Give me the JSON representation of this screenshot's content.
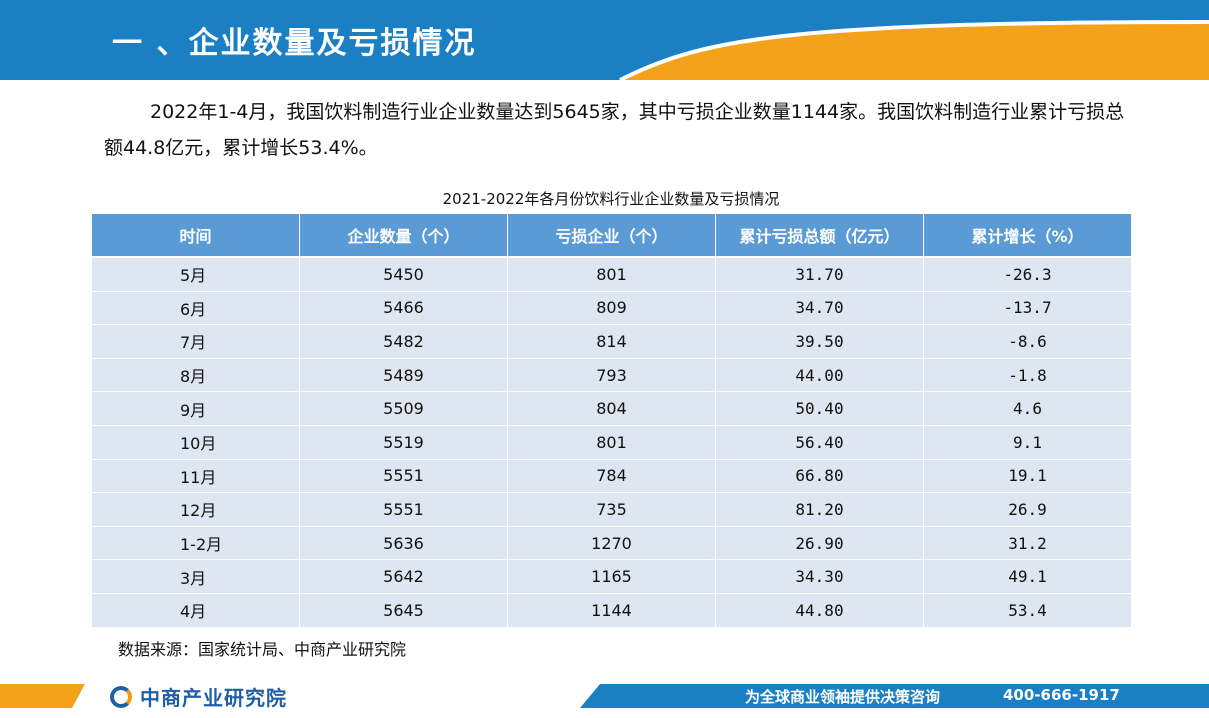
{
  "header": {
    "title": "一 、企业数量及亏损情况"
  },
  "intro": "2022年1-4月，我国饮料制造行业企业数量达到5645家，其中亏损企业数量1144家。我国饮料制造行业累计亏损总额44.8亿元，累计增长53.4%。",
  "table": {
    "caption": "2021-2022年各月份饮料行业企业数量及亏损情况",
    "headers": [
      "时间",
      "企业数量（个）",
      "亏损企业（个）",
      "累计亏损总额（亿元）",
      "累计增长（%）"
    ],
    "rows": [
      [
        "5月",
        "5450",
        "801",
        "31.70",
        "-26.3"
      ],
      [
        "6月",
        "5466",
        "809",
        "34.70",
        "-13.7"
      ],
      [
        "7月",
        "5482",
        "814",
        "39.50",
        "-8.6"
      ],
      [
        "8月",
        "5489",
        "793",
        "44.00",
        "-1.8"
      ],
      [
        "9月",
        "5509",
        "804",
        "50.40",
        "4.6"
      ],
      [
        "10月",
        "5519",
        "801",
        "56.40",
        "9.1"
      ],
      [
        "11月",
        "5551",
        "784",
        "66.80",
        "19.1"
      ],
      [
        "12月",
        "5551",
        "735",
        "81.20",
        "26.9"
      ],
      [
        "1-2月",
        "5636",
        "1270",
        "26.90",
        "31.2"
      ],
      [
        "3月",
        "5642",
        "1165",
        "34.30",
        "49.1"
      ],
      [
        "4月",
        "5645",
        "1144",
        "44.80",
        "53.4"
      ]
    ]
  },
  "source": "数据来源：国家统计局、中商产业研究院",
  "footer": {
    "logo_text": "中商产业研究院",
    "slogan": "为全球商业领袖提供决策咨询",
    "phone": "400-666-1917"
  },
  "colors": {
    "header_blue": "#1b7fc4",
    "accent_orange": "#f5a21b",
    "table_header": "#5b9bd5",
    "table_row": "#dde6f1"
  }
}
